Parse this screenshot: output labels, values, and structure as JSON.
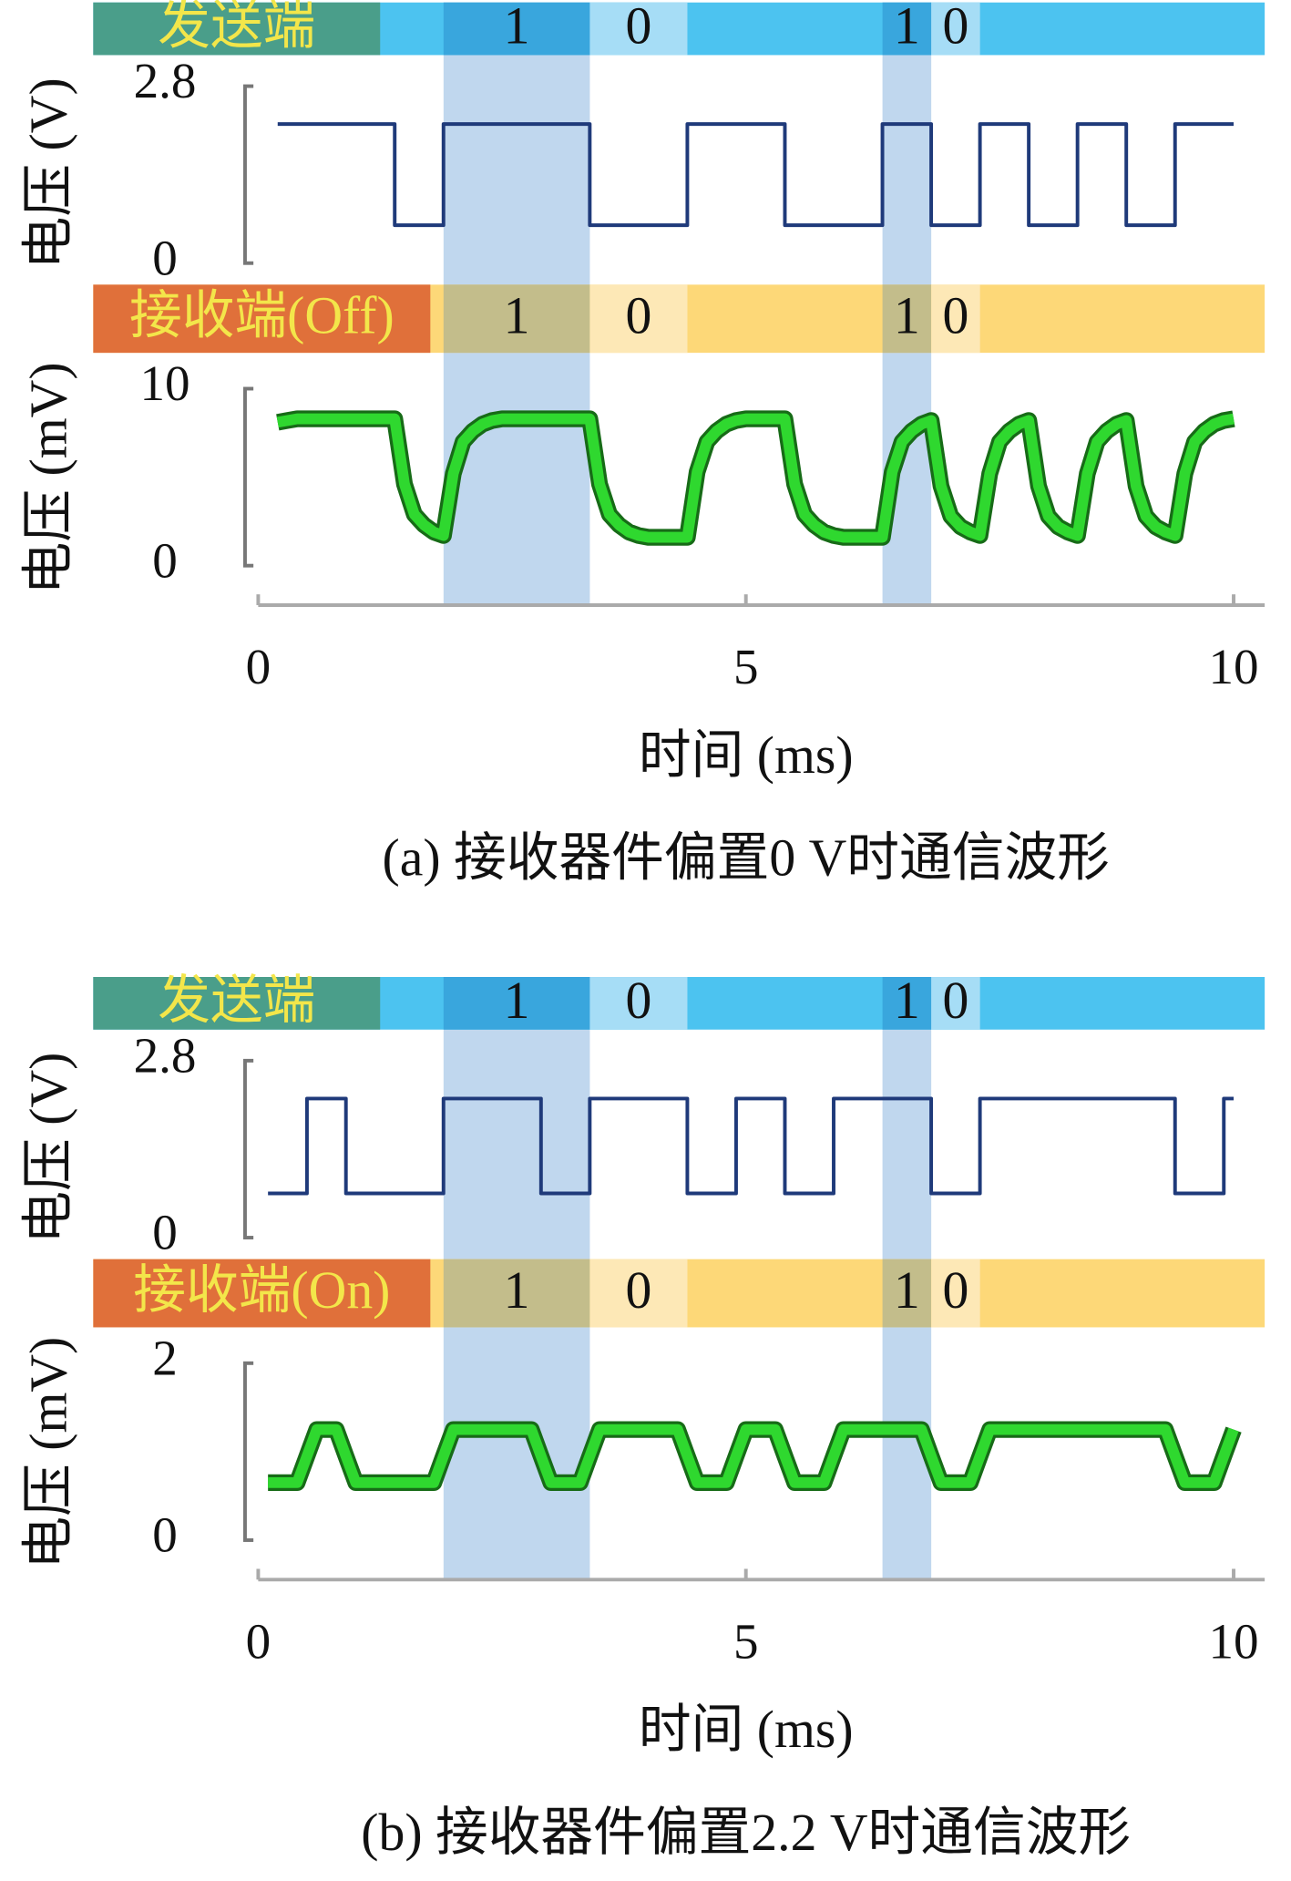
{
  "chart_data": [
    {
      "type": "line",
      "banner": "发送端",
      "banner_color": "#4cc3f0",
      "label_color": "#4a9e8a",
      "label_text_color": "#f3e64a",
      "bits": [
        {
          "start": 1.9,
          "end": 3.4,
          "label": "1",
          "color": "#39a6dd"
        },
        {
          "start": 3.4,
          "end": 4.4,
          "label": "0",
          "color": "#a6ddf6"
        },
        {
          "start": 6.4,
          "end": 6.9,
          "label": "1",
          "color": "#39a6dd"
        },
        {
          "start": 6.9,
          "end": 7.4,
          "label": "0",
          "color": "#a6ddf6"
        }
      ],
      "ylabel": "电压 (V)",
      "ylim": [
        0,
        2.8
      ],
      "yticks": [
        0,
        2.8
      ],
      "xlim": [
        0,
        10
      ],
      "x": [
        0.2,
        1.4,
        1.4,
        1.9,
        1.9,
        3.4,
        3.4,
        4.4,
        4.4,
        5.4,
        5.4,
        6.4,
        6.4,
        6.9,
        6.9,
        7.4,
        7.4,
        7.9,
        7.9,
        8.4,
        8.4,
        8.9,
        8.9,
        9.4,
        9.4,
        10
      ],
      "series": [
        {
          "color": "#1f3a7a",
          "values": [
            2.2,
            2.2,
            0.6,
            0.6,
            2.2,
            2.2,
            0.6,
            0.6,
            2.2,
            2.2,
            0.6,
            0.6,
            2.2,
            2.2,
            0.6,
            0.6,
            2.2,
            2.2,
            0.6,
            0.6,
            2.2,
            2.2,
            0.6,
            0.6,
            2.2,
            2.2
          ]
        }
      ]
    },
    {
      "type": "line",
      "banner": "接收端(Off)",
      "banner_color": "#fdd878",
      "label_color": "#e0703a",
      "label_text_color": "#f3e64a",
      "bits": [
        {
          "start": 1.9,
          "end": 3.4,
          "label": "1",
          "color": "#c3bd8b"
        },
        {
          "start": 3.4,
          "end": 4.4,
          "label": "0",
          "color": "#fde8b6"
        },
        {
          "start": 6.4,
          "end": 6.9,
          "label": "1",
          "color": "#c3bd8b"
        },
        {
          "start": 6.9,
          "end": 7.4,
          "label": "0",
          "color": "#fde8b6"
        }
      ],
      "shaded": {
        "color": "rgba(90,150,210,0.38)",
        "spans": [
          [
            1.9,
            3.4
          ],
          [
            6.4,
            6.9
          ]
        ]
      },
      "ylabel": "电压 (mV)",
      "ylim": [
        0,
        10
      ],
      "yticks": [
        0,
        10
      ],
      "xlim": [
        0,
        10
      ],
      "xticks": [
        0,
        5,
        10
      ],
      "xlabel": "时间 (ms)",
      "caption": "(a) 接收器件偏置0 V时通信波形",
      "x": [
        0.2,
        0.3,
        0.4,
        0.5,
        0.6,
        0.7,
        0.8,
        0.9,
        1.0,
        1.1,
        1.2,
        1.3,
        1.4,
        1.5,
        1.6,
        1.7,
        1.8,
        1.9,
        2.0,
        2.1,
        2.2,
        2.3,
        2.4,
        2.5,
        2.6,
        2.7,
        2.8,
        2.9,
        3.0,
        3.1,
        3.2,
        3.3,
        3.4,
        3.5,
        3.6,
        3.7,
        3.8,
        3.9,
        4.0,
        4.1,
        4.2,
        4.3,
        4.4,
        4.5,
        4.6,
        4.7,
        4.8,
        4.9,
        5.0,
        5.1,
        5.2,
        5.3,
        5.4,
        5.5,
        5.6,
        5.7,
        5.8,
        5.9,
        6.0,
        6.1,
        6.2,
        6.3,
        6.4,
        6.5,
        6.6,
        6.7,
        6.8,
        6.9,
        7.0,
        7.1,
        7.2,
        7.3,
        7.4,
        7.5,
        7.6,
        7.7,
        7.8,
        7.9,
        8.0,
        8.1,
        8.2,
        8.3,
        8.4,
        8.5,
        8.6,
        8.7,
        8.8,
        8.9,
        9.0,
        9.1,
        9.2,
        9.3,
        9.4,
        9.5,
        9.6,
        9.7,
        9.8,
        9.9,
        10.0
      ],
      "series": [
        {
          "color": "#2fd82f",
          "values": [
            8.1,
            8.2,
            8.3,
            8.3,
            8.3,
            8.3,
            8.3,
            8.3,
            8.3,
            8.3,
            8.3,
            8.3,
            8.3,
            4.6,
            2.9,
            2.3,
            1.9,
            1.7,
            5.2,
            7.0,
            7.6,
            8.0,
            8.2,
            8.3,
            8.3,
            8.3,
            8.3,
            8.3,
            8.3,
            8.3,
            8.3,
            8.3,
            8.3,
            4.6,
            2.9,
            2.3,
            1.9,
            1.7,
            1.6,
            1.6,
            1.6,
            1.6,
            1.6,
            5.3,
            7.0,
            7.6,
            8.0,
            8.2,
            8.3,
            8.3,
            8.3,
            8.3,
            8.3,
            4.6,
            2.9,
            2.3,
            1.9,
            1.7,
            1.6,
            1.6,
            1.6,
            1.6,
            1.6,
            5.3,
            7.0,
            7.6,
            8.0,
            8.2,
            4.5,
            2.8,
            2.2,
            1.9,
            1.7,
            5.2,
            7.0,
            7.6,
            8.0,
            8.2,
            4.5,
            2.8,
            2.2,
            1.9,
            1.7,
            5.2,
            7.0,
            7.6,
            8.0,
            8.2,
            4.5,
            2.8,
            2.2,
            1.9,
            1.7,
            5.2,
            7.0,
            7.6,
            8.0,
            8.2,
            8.3
          ]
        }
      ]
    },
    {
      "type": "line",
      "banner": "发送端",
      "banner_color": "#4cc3f0",
      "label_color": "#4a9e8a",
      "label_text_color": "#f3e64a",
      "bits": [
        {
          "start": 1.9,
          "end": 3.4,
          "label": "1",
          "color": "#39a6dd"
        },
        {
          "start": 3.4,
          "end": 4.4,
          "label": "0",
          "color": "#a6ddf6"
        },
        {
          "start": 6.4,
          "end": 6.9,
          "label": "1",
          "color": "#39a6dd"
        },
        {
          "start": 6.9,
          "end": 7.4,
          "label": "0",
          "color": "#a6ddf6"
        }
      ],
      "ylabel": "电压 (V)",
      "ylim": [
        0,
        2.8
      ],
      "yticks": [
        0,
        2.8
      ],
      "xlim": [
        0,
        10
      ],
      "x": [
        0.1,
        0.5,
        0.5,
        0.9,
        0.9,
        1.9,
        1.9,
        2.9,
        2.9,
        3.4,
        3.4,
        4.4,
        4.4,
        4.9,
        4.9,
        5.4,
        5.4,
        5.9,
        5.9,
        6.9,
        6.9,
        7.4,
        7.4,
        9.4,
        9.4,
        9.9,
        9.9,
        10
      ],
      "series": [
        {
          "color": "#1f3a7a",
          "values": [
            0.7,
            0.7,
            2.2,
            2.2,
            0.7,
            0.7,
            2.2,
            2.2,
            0.7,
            0.7,
            2.2,
            2.2,
            0.7,
            0.7,
            2.2,
            2.2,
            0.7,
            0.7,
            2.2,
            2.2,
            0.7,
            0.7,
            2.2,
            2.2,
            0.7,
            0.7,
            2.2,
            2.2
          ]
        }
      ]
    },
    {
      "type": "line",
      "banner": "接收端(On)",
      "banner_color": "#fdd878",
      "label_color": "#e0703a",
      "label_text_color": "#f3e64a",
      "bits": [
        {
          "start": 1.9,
          "end": 3.4,
          "label": "1",
          "color": "#c3bd8b"
        },
        {
          "start": 3.4,
          "end": 4.4,
          "label": "0",
          "color": "#fde8b6"
        },
        {
          "start": 6.4,
          "end": 6.9,
          "label": "1",
          "color": "#c3bd8b"
        },
        {
          "start": 6.9,
          "end": 7.4,
          "label": "0",
          "color": "#fde8b6"
        }
      ],
      "shaded": {
        "color": "rgba(90,150,210,0.38)",
        "spans": [
          [
            1.9,
            3.4
          ],
          [
            6.4,
            6.9
          ]
        ]
      },
      "ylabel": "电压 (mV)",
      "ylim": [
        0,
        2
      ],
      "yticks": [
        0,
        2
      ],
      "xlim": [
        0,
        10
      ],
      "xticks": [
        0,
        5,
        10
      ],
      "xlabel": "时间 (ms)",
      "caption": "(b) 接收器件偏置2.2 V时通信波形",
      "x": [
        0.1,
        0.2,
        0.3,
        0.4,
        0.5,
        0.6,
        0.7,
        0.8,
        0.9,
        1.0,
        1.1,
        1.2,
        1.3,
        1.4,
        1.5,
        1.6,
        1.7,
        1.8,
        1.9,
        2.0,
        2.1,
        2.2,
        2.3,
        2.4,
        2.5,
        2.6,
        2.7,
        2.8,
        2.9,
        3.0,
        3.1,
        3.2,
        3.3,
        3.4,
        3.5,
        3.6,
        3.7,
        3.8,
        3.9,
        4.0,
        4.1,
        4.2,
        4.3,
        4.4,
        4.5,
        4.6,
        4.7,
        4.8,
        4.9,
        5.0,
        5.1,
        5.2,
        5.3,
        5.4,
        5.5,
        5.6,
        5.7,
        5.8,
        5.9,
        6.0,
        6.1,
        6.2,
        6.3,
        6.4,
        6.5,
        6.6,
        6.7,
        6.8,
        6.9,
        7.0,
        7.1,
        7.2,
        7.3,
        7.4,
        7.5,
        7.6,
        7.7,
        7.8,
        7.9,
        8.0,
        8.1,
        8.2,
        8.3,
        8.4,
        8.5,
        8.6,
        8.7,
        8.8,
        8.9,
        9.0,
        9.1,
        9.2,
        9.3,
        9.4,
        9.5,
        9.6,
        9.7,
        9.8,
        9.9,
        10.0
      ],
      "series": [
        {
          "color": "#2fd82f",
          "values": [
            0.65,
            0.65,
            0.65,
            0.65,
            0.95,
            1.25,
            1.25,
            1.25,
            0.95,
            0.65,
            0.65,
            0.65,
            0.65,
            0.65,
            0.65,
            0.65,
            0.65,
            0.65,
            0.95,
            1.25,
            1.25,
            1.25,
            1.25,
            1.25,
            1.25,
            1.25,
            1.25,
            1.25,
            0.95,
            0.65,
            0.65,
            0.65,
            0.65,
            0.95,
            1.25,
            1.25,
            1.25,
            1.25,
            1.25,
            1.25,
            1.25,
            1.25,
            1.25,
            0.95,
            0.65,
            0.65,
            0.65,
            0.65,
            0.95,
            1.25,
            1.25,
            1.25,
            1.25,
            0.95,
            0.65,
            0.65,
            0.65,
            0.65,
            0.95,
            1.25,
            1.25,
            1.25,
            1.25,
            1.25,
            1.25,
            1.25,
            1.25,
            1.25,
            0.95,
            0.65,
            0.65,
            0.65,
            0.65,
            0.95,
            1.25,
            1.25,
            1.25,
            1.25,
            1.25,
            1.25,
            1.25,
            1.25,
            1.25,
            1.25,
            1.25,
            1.25,
            1.25,
            1.25,
            1.25,
            1.25,
            1.25,
            1.25,
            1.25,
            0.95,
            0.65,
            0.65,
            0.65,
            0.65,
            0.95,
            1.25
          ]
        }
      ]
    }
  ]
}
